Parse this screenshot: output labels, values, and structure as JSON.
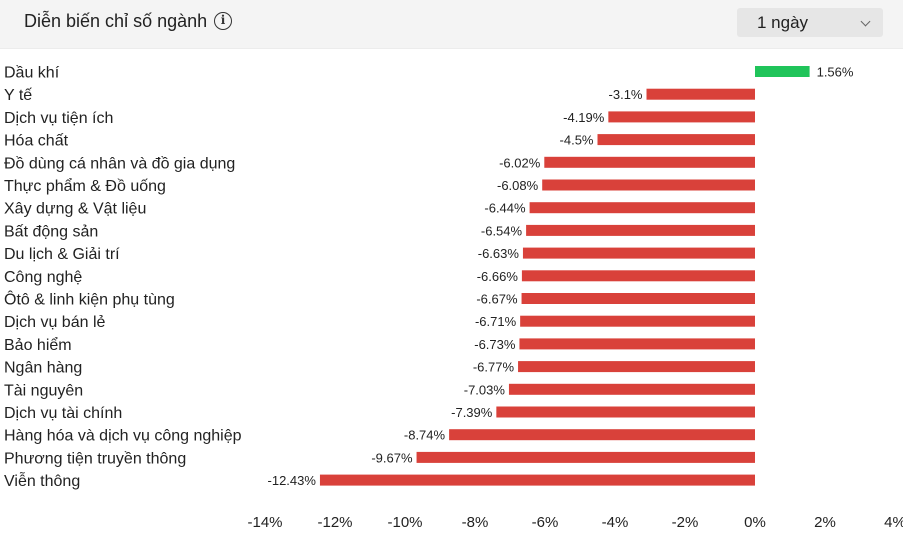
{
  "header": {
    "title": "Diễn biến chỉ số ngành",
    "info_icon": "info-icon",
    "period_selected": "1 ngày",
    "dropdown_icon": "chevron-down-icon"
  },
  "colors": {
    "positive": "#20c45a",
    "negative": "#d9413a"
  },
  "chart_data": {
    "type": "bar",
    "orientation": "horizontal",
    "categories": [
      "Dầu khí",
      "Y tế",
      "Dịch vụ tiện ích",
      "Hóa chất",
      "Đồ dùng cá nhân và đồ gia dụng",
      "Thực phẩm & Đồ uống",
      "Xây dựng & Vật liệu",
      "Bất động sản",
      "Du lịch & Giải trí",
      "Công nghệ",
      "Ôtô & linh kiện phụ tùng",
      "Dịch vụ bán lẻ",
      "Bảo hiểm",
      "Ngân hàng",
      "Tài nguyên",
      "Dịch vụ tài chính",
      "Hàng hóa và dịch vụ công nghiệp",
      "Phương tiện truyền thông",
      "Viễn thông"
    ],
    "values": [
      1.56,
      -3.1,
      -4.19,
      -4.5,
      -6.02,
      -6.08,
      -6.44,
      -6.54,
      -6.63,
      -6.66,
      -6.67,
      -6.71,
      -6.73,
      -6.77,
      -7.03,
      -7.39,
      -8.74,
      -9.67,
      -12.43
    ],
    "value_labels": [
      "1.56%",
      "-3.1%",
      "-4.19%",
      "-4.5%",
      "-6.02%",
      "-6.08%",
      "-6.44%",
      "-6.54%",
      "-6.63%",
      "-6.66%",
      "-6.67%",
      "-6.71%",
      "-6.73%",
      "-6.77%",
      "-7.03%",
      "-7.39%",
      "-8.74%",
      "-9.67%",
      "-12.43%"
    ],
    "xlim": [
      -14,
      4
    ],
    "xticks": [
      -14,
      -12,
      -10,
      -8,
      -6,
      -4,
      -2,
      0,
      2,
      4
    ],
    "xtick_labels": [
      "-14%",
      "-12%",
      "-10%",
      "-8%",
      "-6%",
      "-4%",
      "-2%",
      "0%",
      "2%",
      "4%"
    ],
    "grid": false,
    "legend": "none"
  }
}
